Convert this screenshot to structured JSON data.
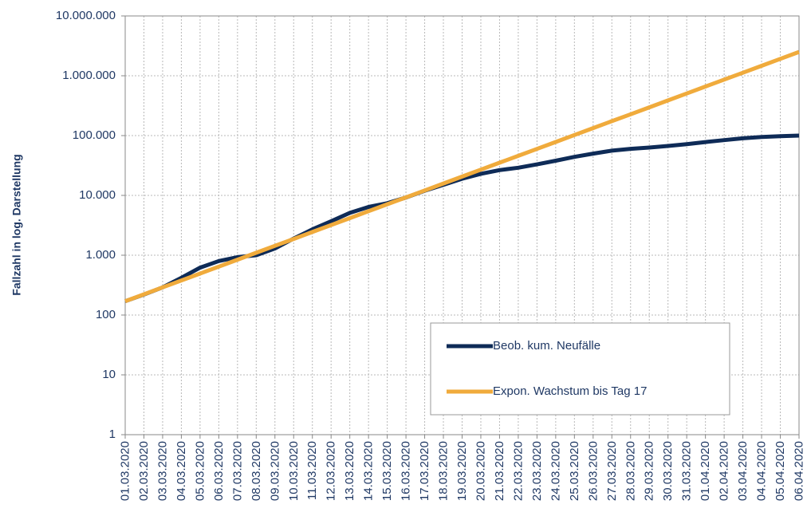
{
  "chart_data": {
    "type": "line",
    "y_label": "Fallzahl in log. Darstellung",
    "log_y": true,
    "grid": true,
    "legend": "lower right",
    "categories": [
      "01.03.2020",
      "02.03.2020",
      "03.03.2020",
      "04.03.2020",
      "05.03.2020",
      "06.03.2020",
      "07.03.2020",
      "08.03.2020",
      "09.03.2020",
      "10.03.2020",
      "11.03.2020",
      "12.03.2020",
      "13.03.2020",
      "14.03.2020",
      "15.03.2020",
      "16.03.2020",
      "17.03.2020",
      "18.03.2020",
      "19.03.2020",
      "20.03.2020",
      "21.03.2020",
      "22.03.2020",
      "23.03.2020",
      "24.03.2020",
      "25.03.2020",
      "26.03.2020",
      "27.03.2020",
      "28.03.2020",
      "29.03.2020",
      "30.03.2020",
      "31.03.2020",
      "01.04.2020",
      "02.04.2020",
      "03.04.2020",
      "04.04.2020",
      "05.04.2020",
      "06.04.2020"
    ],
    "series": [
      {
        "name": "Beob. kum. Neufälle",
        "color": "#0e2b57",
        "values": [
          170,
          220,
          290,
          420,
          620,
          800,
          930,
          1000,
          1300,
          1900,
          2700,
          3700,
          5100,
          6400,
          7400,
          9200,
          12000,
          15000,
          19000,
          23000,
          26500,
          29000,
          33000,
          38000,
          44000,
          50000,
          56000,
          60000,
          63000,
          67000,
          72000,
          78000,
          84000,
          90000,
          95000,
          98000,
          100000
        ]
      },
      {
        "name": "Expon. Wachstum bis Tag 17",
        "color": "#f0ab3c",
        "values": [
          170,
          222,
          290,
          378,
          494,
          645,
          842,
          1099,
          1435,
          1873,
          2445,
          3192,
          4168,
          5441,
          7103,
          9273,
          12106,
          15804,
          20632,
          26935,
          35164,
          45906,
          59930,
          78237,
          102137,
          133338,
          174073,
          227251,
          296674,
          387306,
          505623,
          660085,
          861734,
          1124978,
          1468640,
          1917288,
          2502995
        ]
      }
    ],
    "ylim": [
      1,
      10000000
    ],
    "yticks": [
      1,
      10,
      100,
      {
        "value": 1000,
        "label": "1.000"
      },
      {
        "value": 10000,
        "label": "10.000"
      },
      {
        "value": 100000,
        "label": "100.000"
      },
      {
        "value": 1000000,
        "label": "1.000.000"
      },
      {
        "value": 10000000,
        "label": "10.000.000"
      }
    ]
  }
}
